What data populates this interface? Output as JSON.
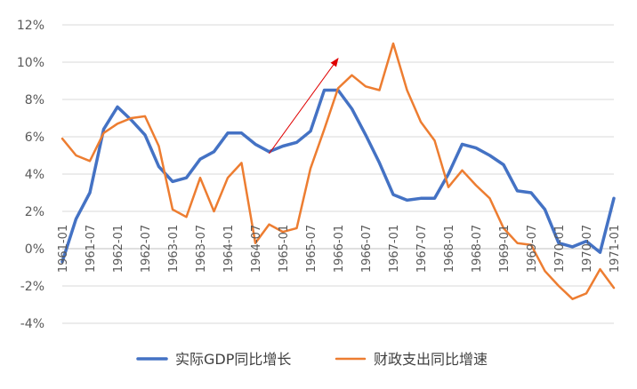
{
  "chart_data": {
    "type": "line",
    "title": "",
    "xlabel": "",
    "ylabel": "",
    "ylim": [
      -4,
      12
    ],
    "ytick_labels": [
      "-4%",
      "-2%",
      "0%",
      "2%",
      "4%",
      "6%",
      "8%",
      "10%",
      "12%"
    ],
    "ytick_values": [
      -4,
      -2,
      0,
      2,
      4,
      6,
      8,
      10,
      12
    ],
    "x_tick_labels": [
      "1961-01",
      "1961-07",
      "1962-01",
      "1962-07",
      "1963-01",
      "1963-07",
      "1964-01",
      "1964-07",
      "1965-01",
      "1965-07",
      "1966-01",
      "1966-07",
      "1967-01",
      "1967-07",
      "1968-01",
      "1968-07",
      "1969-01",
      "1969-07",
      "1970-01",
      "1970-07",
      "1971-01"
    ],
    "x_tick_index": [
      0,
      2,
      4,
      6,
      8,
      10,
      12,
      14,
      16,
      18,
      20,
      22,
      24,
      26,
      28,
      30,
      32,
      34,
      36,
      38,
      40
    ],
    "grid": true,
    "legend_position": "bottom",
    "series": [
      {
        "name": "实际GDP同比增长",
        "color": "#4472C4",
        "values": [
          -0.7,
          1.6,
          3.0,
          6.4,
          7.6,
          6.9,
          6.1,
          4.4,
          3.6,
          3.8,
          4.8,
          5.2,
          6.2,
          6.2,
          5.6,
          5.2,
          5.5,
          5.7,
          6.3,
          8.5,
          8.5,
          7.5,
          6.1,
          4.6,
          2.9,
          2.6,
          2.7,
          2.7,
          4.0,
          5.6,
          5.4,
          5.0,
          4.5,
          3.1,
          3.0,
          2.1,
          0.3,
          0.1,
          0.4,
          -0.2,
          2.7
        ]
      },
      {
        "name": "财政支出同比增速",
        "color": "#ED7D31",
        "values": [
          5.9,
          5.0,
          4.7,
          6.2,
          6.7,
          7.0,
          7.1,
          5.5,
          2.1,
          1.7,
          3.8,
          2.0,
          3.8,
          4.6,
          0.3,
          1.3,
          0.9,
          1.1,
          4.3,
          6.4,
          8.6,
          9.3,
          8.7,
          8.5,
          11.0,
          8.5,
          6.8,
          5.8,
          3.3,
          4.2,
          3.4,
          2.7,
          1.1,
          0.3,
          0.2,
          -1.2,
          -2.0,
          -2.7,
          -2.4,
          -1.1,
          -2.1
        ]
      }
    ],
    "annotations": [
      {
        "type": "arrow",
        "color": "#E00000",
        "from": {
          "x_index": 15,
          "y": 5.1
        },
        "to": {
          "x_index": 20,
          "y": 10.2
        }
      }
    ]
  }
}
